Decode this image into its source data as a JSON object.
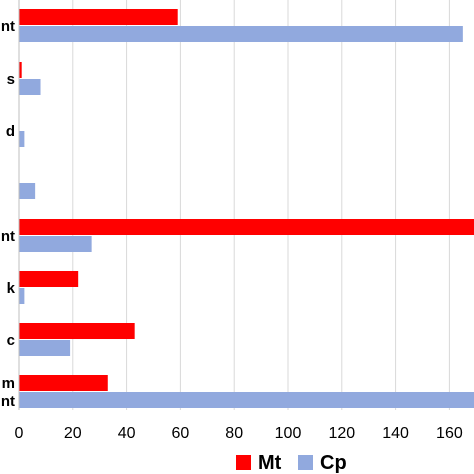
{
  "chart_data": {
    "type": "bar",
    "orientation": "horizontal",
    "categories": [
      "nt",
      "s",
      "d",
      "",
      "nt",
      "k",
      "c",
      "m nt"
    ],
    "series": [
      {
        "name": "Mt",
        "color": "#ff0000",
        "values": [
          59,
          1,
          0,
          0,
          170,
          22,
          43,
          33
        ]
      },
      {
        "name": "Cp",
        "color": "#91a9de",
        "values": [
          165,
          8,
          2,
          6,
          27,
          2,
          19,
          170
        ]
      }
    ],
    "xlim": [
      0,
      166
    ],
    "xticks": [
      "0",
      "20",
      "40",
      "60",
      "80",
      "100",
      "120",
      "140",
      "160"
    ],
    "grid": true,
    "legend": "bottom-center",
    "title": "",
    "xlabel": "",
    "ylabel": ""
  }
}
